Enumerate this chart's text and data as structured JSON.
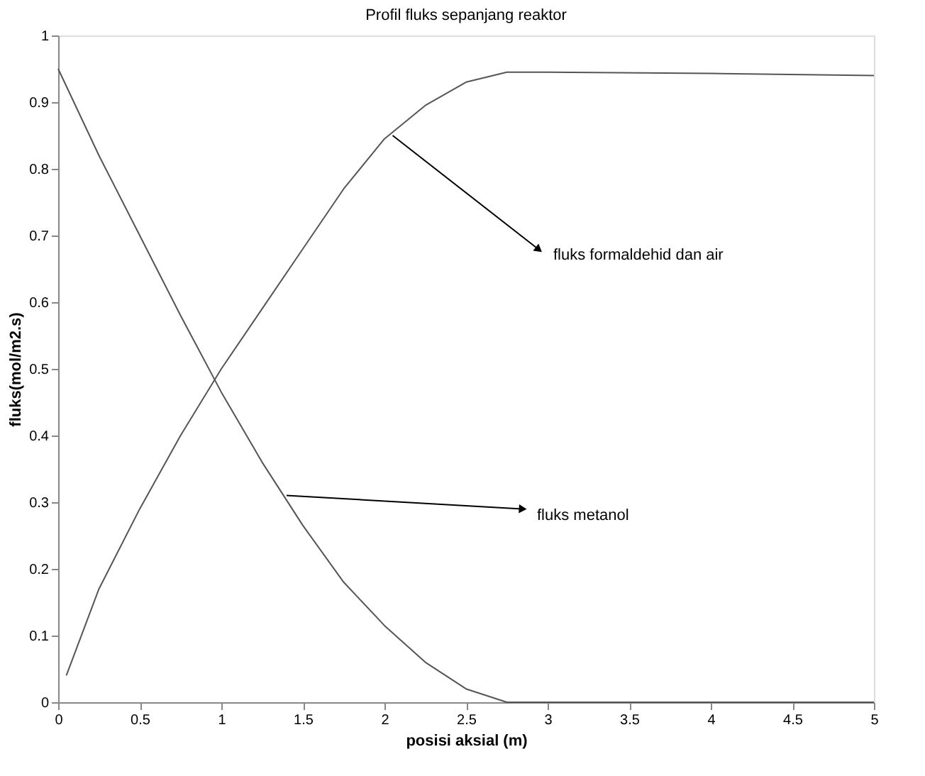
{
  "chart_data": {
    "type": "line",
    "title": "Profil fluks sepanjang reaktor",
    "xlabel": "posisi aksial (m)",
    "ylabel": "fluks(mol/m2.s)",
    "xlim": [
      0,
      5
    ],
    "xticks": [
      0,
      0.5,
      1,
      1.5,
      2,
      2.5,
      3,
      3.5,
      4,
      4.5,
      5
    ],
    "ylim": [
      0,
      1
    ],
    "yticks": [
      0,
      0.1,
      0.2,
      0.3,
      0.4,
      0.5,
      0.6,
      0.7,
      0.8,
      0.9,
      1
    ],
    "grid": false,
    "marker": "none",
    "line_style": "solid",
    "series": [
      {
        "color": "#555555",
        "x": [
          0,
          0.25,
          0.5,
          0.75,
          1.0,
          1.25,
          1.5,
          1.75,
          2.0,
          2.25,
          2.5,
          2.75,
          5
        ],
        "values": [
          0.95,
          0.82,
          0.7,
          0.58,
          0.465,
          0.36,
          0.265,
          0.18,
          0.115,
          0.06,
          0.02,
          0.0,
          0.0
        ]
      },
      {
        "color": "#555555",
        "x": [
          0.05,
          0.25,
          0.5,
          0.75,
          1.0,
          1.25,
          1.5,
          1.75,
          2.0,
          2.25,
          2.5,
          2.75,
          3,
          4,
          5
        ],
        "values": [
          0.04,
          0.17,
          0.29,
          0.4,
          0.5,
          0.59,
          0.68,
          0.77,
          0.845,
          0.895,
          0.93,
          0.945,
          0.945,
          0.943,
          0.94
        ]
      }
    ],
    "annotations": [
      {
        "text": "fluks formaldehid dan air",
        "x": 2.05,
        "y": 0.85
      },
      {
        "text": "fluks metanol",
        "x": 1.4,
        "y": 0.31
      }
    ]
  }
}
